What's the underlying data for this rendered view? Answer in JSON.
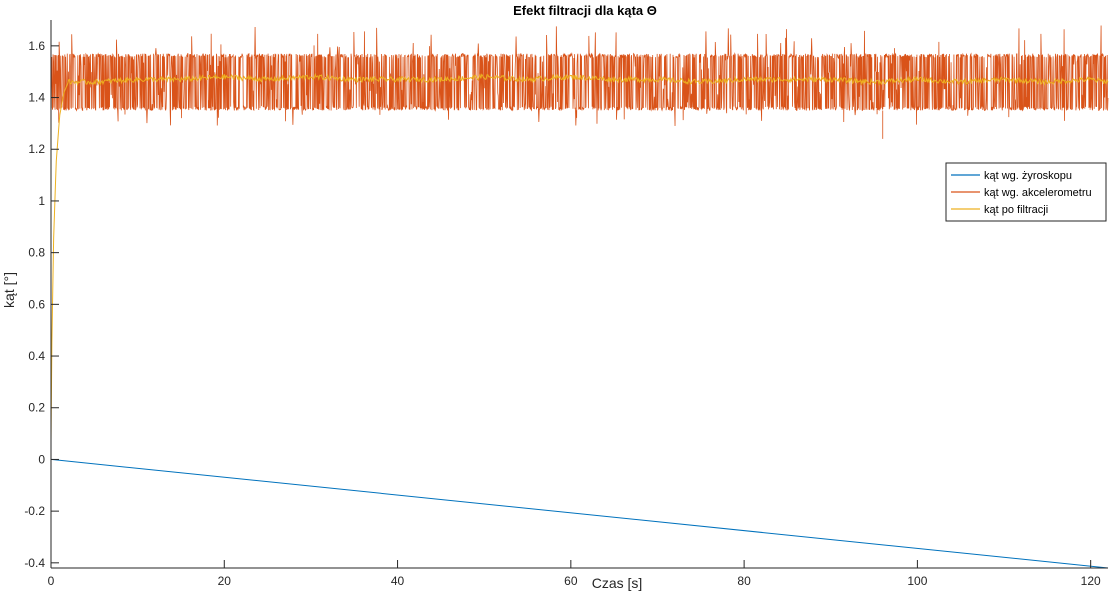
{
  "chart_data": {
    "type": "line",
    "title": "Efekt filtracji dla kąta Θ",
    "xlabel": "Czas [s]",
    "ylabel": "kąt [°]",
    "xlim": [
      0,
      122
    ],
    "ylim": [
      -0.42,
      1.7
    ],
    "xticks": [
      0,
      20,
      40,
      60,
      80,
      100,
      120
    ],
    "yticks": [
      -0.4,
      -0.2,
      0,
      0.2,
      0.4,
      0.6,
      0.8,
      1,
      1.2,
      1.4,
      1.6
    ],
    "xtick_labels": [
      "0",
      "20",
      "40",
      "60",
      "80",
      "100",
      "120"
    ],
    "ytick_labels": [
      "-0.4",
      "-0.2",
      "0",
      "0.2",
      "0.4",
      "0.6",
      "0.8",
      "1",
      "1.2",
      "1.4",
      "1.6"
    ],
    "grid": false,
    "legend_position": "right",
    "series": [
      {
        "name": "kąt wg. żyroskopu",
        "color": "#0072BD",
        "x": [
          0,
          122
        ],
        "y": [
          0,
          -0.42
        ]
      },
      {
        "name": "kąt wg. akcelerometru",
        "color": "#D95319",
        "x": [
          0,
          122
        ],
        "band": [
          1.35,
          1.57
        ],
        "spike_high": 1.68,
        "spike_low": 1.24
      },
      {
        "name": "kąt po filtracji",
        "color": "#EDB120",
        "x": [
          0,
          0.1,
          0.3,
          0.6,
          1.0,
          1.5,
          2,
          5,
          10,
          15,
          20,
          25,
          30,
          35,
          40,
          45,
          50,
          55,
          60,
          65,
          70,
          75,
          80,
          85,
          90,
          95,
          100,
          105,
          110,
          115,
          120,
          122
        ],
        "y": [
          0.07,
          0.45,
          0.85,
          1.15,
          1.33,
          1.42,
          1.46,
          1.46,
          1.47,
          1.47,
          1.48,
          1.47,
          1.48,
          1.47,
          1.47,
          1.47,
          1.48,
          1.47,
          1.48,
          1.47,
          1.47,
          1.46,
          1.47,
          1.47,
          1.47,
          1.46,
          1.47,
          1.46,
          1.47,
          1.46,
          1.47,
          1.46
        ]
      }
    ]
  }
}
